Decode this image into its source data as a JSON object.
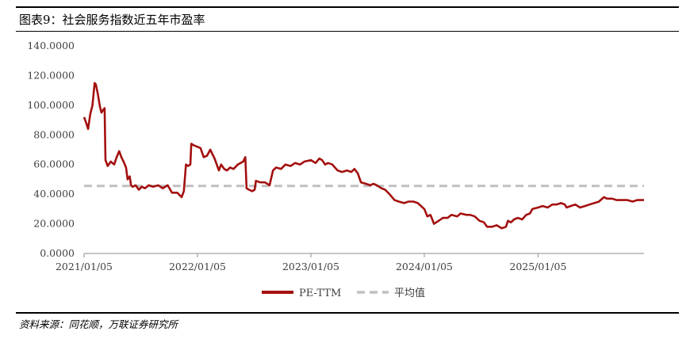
{
  "figure": {
    "title": "图表9：社会服务指数近五年市盈率",
    "source": "资料来源：同花顺，万联证券研究所"
  },
  "chart_data": {
    "type": "line",
    "title": "",
    "xlabel": "",
    "ylabel": "",
    "ylim": [
      0,
      140
    ],
    "y_ticks": [
      "0.0000",
      "20.0000",
      "40.0000",
      "60.0000",
      "80.0000",
      "100.0000",
      "120.0000",
      "140.0000"
    ],
    "x_ticks": [
      "2021/01/05",
      "2022/01/05",
      "2023/01/05",
      "2024/01/05",
      "2025/01/05"
    ],
    "grid": false,
    "legend_position": "bottom",
    "series": [
      {
        "name": "PE-TTM",
        "color": "#A3100F",
        "style": "solid",
        "points": [
          [
            "2021-01-05",
            92
          ],
          [
            "2021-01-12",
            88
          ],
          [
            "2021-01-18",
            84
          ],
          [
            "2021-01-25",
            94
          ],
          [
            "2021-02-01",
            100
          ],
          [
            "2021-02-08",
            115
          ],
          [
            "2021-02-12",
            114
          ],
          [
            "2021-02-18",
            108
          ],
          [
            "2021-02-25",
            99
          ],
          [
            "2021-03-02",
            95
          ],
          [
            "2021-03-08",
            97
          ],
          [
            "2021-03-12",
            98
          ],
          [
            "2021-03-15",
            63
          ],
          [
            "2021-03-22",
            59
          ],
          [
            "2021-04-01",
            62
          ],
          [
            "2021-04-12",
            60
          ],
          [
            "2021-04-20",
            65
          ],
          [
            "2021-04-28",
            69
          ],
          [
            "2021-05-05",
            65
          ],
          [
            "2021-05-12",
            62
          ],
          [
            "2021-05-20",
            58
          ],
          [
            "2021-05-25",
            50
          ],
          [
            "2021-06-01",
            52
          ],
          [
            "2021-06-05",
            46
          ],
          [
            "2021-06-10",
            45
          ],
          [
            "2021-06-20",
            46
          ],
          [
            "2021-06-30",
            43
          ],
          [
            "2021-07-10",
            45
          ],
          [
            "2021-07-20",
            44
          ],
          [
            "2021-08-01",
            46
          ],
          [
            "2021-08-15",
            45
          ],
          [
            "2021-09-01",
            46
          ],
          [
            "2021-09-15",
            44
          ],
          [
            "2021-10-01",
            46
          ],
          [
            "2021-10-15",
            41
          ],
          [
            "2021-11-01",
            41
          ],
          [
            "2021-11-15",
            38
          ],
          [
            "2021-11-22",
            42
          ],
          [
            "2021-11-29",
            60
          ],
          [
            "2021-12-06",
            59
          ],
          [
            "2021-12-13",
            60
          ],
          [
            "2021-12-16",
            74
          ],
          [
            "2021-12-24",
            73
          ],
          [
            "2022-01-05",
            72
          ],
          [
            "2022-01-15",
            71
          ],
          [
            "2022-01-25",
            65
          ],
          [
            "2022-02-05",
            66
          ],
          [
            "2022-02-15",
            70
          ],
          [
            "2022-03-01",
            64
          ],
          [
            "2022-03-08",
            60
          ],
          [
            "2022-03-15",
            56
          ],
          [
            "2022-03-22",
            60
          ],
          [
            "2022-04-01",
            57
          ],
          [
            "2022-04-10",
            56
          ],
          [
            "2022-04-20",
            58
          ],
          [
            "2022-05-01",
            57
          ],
          [
            "2022-05-15",
            60
          ],
          [
            "2022-06-01",
            62
          ],
          [
            "2022-06-08",
            65
          ],
          [
            "2022-06-12",
            44
          ],
          [
            "2022-06-20",
            43
          ],
          [
            "2022-06-30",
            42
          ],
          [
            "2022-07-08",
            43
          ],
          [
            "2022-07-12",
            49
          ],
          [
            "2022-07-25",
            48
          ],
          [
            "2022-08-10",
            48
          ],
          [
            "2022-08-25",
            46
          ],
          [
            "2022-09-05",
            56
          ],
          [
            "2022-09-15",
            58
          ],
          [
            "2022-10-01",
            57
          ],
          [
            "2022-10-15",
            60
          ],
          [
            "2022-11-01",
            59
          ],
          [
            "2022-11-15",
            61
          ],
          [
            "2022-12-01",
            60
          ],
          [
            "2022-12-15",
            62
          ],
          [
            "2023-01-05",
            63
          ],
          [
            "2023-01-20",
            61
          ],
          [
            "2023-02-01",
            64
          ],
          [
            "2023-02-10",
            63
          ],
          [
            "2023-02-20",
            60
          ],
          [
            "2023-03-01",
            61
          ],
          [
            "2023-03-15",
            60
          ],
          [
            "2023-04-01",
            56
          ],
          [
            "2023-04-15",
            55
          ],
          [
            "2023-05-01",
            56
          ],
          [
            "2023-05-15",
            55
          ],
          [
            "2023-05-25",
            57
          ],
          [
            "2023-06-05",
            54
          ],
          [
            "2023-06-15",
            48
          ],
          [
            "2023-07-01",
            47
          ],
          [
            "2023-07-15",
            46
          ],
          [
            "2023-07-25",
            47
          ],
          [
            "2023-08-05",
            46
          ],
          [
            "2023-08-20",
            44
          ],
          [
            "2023-09-01",
            43
          ],
          [
            "2023-09-15",
            40
          ],
          [
            "2023-10-01",
            36
          ],
          [
            "2023-10-15",
            35
          ],
          [
            "2023-11-01",
            34
          ],
          [
            "2023-11-15",
            35
          ],
          [
            "2023-12-01",
            35
          ],
          [
            "2023-12-15",
            34
          ],
          [
            "2024-01-05",
            30
          ],
          [
            "2024-01-15",
            25
          ],
          [
            "2024-01-25",
            26
          ],
          [
            "2024-02-05",
            20
          ],
          [
            "2024-02-20",
            22
          ],
          [
            "2024-03-05",
            24
          ],
          [
            "2024-03-20",
            24
          ],
          [
            "2024-04-01",
            26
          ],
          [
            "2024-04-20",
            25
          ],
          [
            "2024-05-01",
            27
          ],
          [
            "2024-05-20",
            26
          ],
          [
            "2024-06-01",
            26
          ],
          [
            "2024-06-15",
            25
          ],
          [
            "2024-07-01",
            22
          ],
          [
            "2024-07-15",
            21
          ],
          [
            "2024-07-25",
            18
          ],
          [
            "2024-08-10",
            18
          ],
          [
            "2024-08-25",
            19
          ],
          [
            "2024-09-10",
            17
          ],
          [
            "2024-09-24",
            18
          ],
          [
            "2024-09-30",
            22
          ],
          [
            "2024-10-10",
            21
          ],
          [
            "2024-10-20",
            23
          ],
          [
            "2024-11-01",
            24
          ],
          [
            "2024-11-15",
            23
          ],
          [
            "2024-11-28",
            26
          ],
          [
            "2024-12-10",
            27
          ],
          [
            "2024-12-18",
            30
          ],
          [
            "2025-01-05",
            31
          ],
          [
            "2025-01-20",
            32
          ],
          [
            "2025-02-05",
            31
          ],
          [
            "2025-02-20",
            33
          ],
          [
            "2025-03-05",
            33
          ],
          [
            "2025-03-20",
            34
          ],
          [
            "2025-04-01",
            33
          ],
          [
            "2025-04-07",
            31
          ],
          [
            "2025-04-20",
            32
          ],
          [
            "2025-05-05",
            33
          ],
          [
            "2025-05-20",
            31
          ],
          [
            "2025-06-05",
            32
          ],
          [
            "2025-06-20",
            33
          ],
          [
            "2025-07-05",
            34
          ],
          [
            "2025-07-20",
            35
          ],
          [
            "2025-08-05",
            38
          ],
          [
            "2025-08-15",
            37
          ],
          [
            "2025-09-01",
            37
          ],
          [
            "2025-09-15",
            36
          ],
          [
            "2025-10-01",
            36
          ],
          [
            "2025-10-20",
            36
          ],
          [
            "2025-11-05",
            35
          ],
          [
            "2025-11-20",
            36
          ],
          [
            "2025-12-05",
            36
          ],
          [
            "2025-12-12",
            36
          ]
        ]
      },
      {
        "name": "平均值",
        "color": "#C0C0C0",
        "style": "dashed",
        "points": [
          [
            "2021-01-05",
            45.5
          ],
          [
            "2025-12-12",
            45.5
          ]
        ]
      }
    ]
  }
}
